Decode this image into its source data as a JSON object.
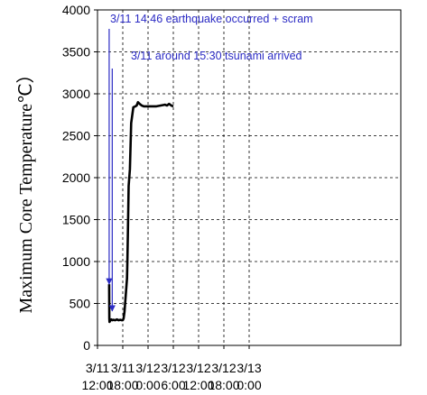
{
  "chart_data": {
    "type": "line",
    "title": "",
    "xlabel": "",
    "ylabel": "Maximum Core Temperature℃）",
    "xlim": [
      0,
      72
    ],
    "ylim": [
      0,
      4000
    ],
    "grid": true,
    "legend": "none",
    "y_ticks": [
      {
        "value": 0,
        "label": "0"
      },
      {
        "value": 500,
        "label": "500"
      },
      {
        "value": 1000,
        "label": "1000"
      },
      {
        "value": 1500,
        "label": "1500"
      },
      {
        "value": 2000,
        "label": "2000"
      },
      {
        "value": 2500,
        "label": "2500"
      },
      {
        "value": 3000,
        "label": "3000"
      },
      {
        "value": 3500,
        "label": "3500"
      },
      {
        "value": 4000,
        "label": "4000"
      }
    ],
    "x_ticks": [
      {
        "value": 0,
        "date": "3/11",
        "time": "12:00"
      },
      {
        "value": 6,
        "date": "3/11",
        "time": "18:00"
      },
      {
        "value": 12,
        "date": "3/12",
        "time": "0:00"
      },
      {
        "value": 18,
        "date": "3/12",
        "time": "6:00"
      },
      {
        "value": 24,
        "date": "3/12",
        "time": "12:00"
      },
      {
        "value": 30,
        "date": "3/12",
        "time": "18:00"
      },
      {
        "value": 36,
        "date": "3/13",
        "time": "0:00"
      }
    ],
    "series": [
      {
        "color": "#000000",
        "x": [
          2.77,
          2.8,
          2.85,
          2.95,
          3.1,
          3.3,
          3.5,
          3.8,
          4.2,
          4.6,
          5.0,
          5.4,
          5.8,
          6.0,
          6.2,
          6.4,
          6.7,
          7.0,
          7.1,
          7.2,
          7.4,
          7.7,
          8.0,
          8.5,
          9.0,
          9.3,
          9.6,
          10.0,
          10.5,
          11.0,
          12.0,
          13.0,
          14.0,
          15.0,
          16.0,
          16.5,
          17.0,
          17.5,
          18.0
        ],
        "y": [
          730,
          320,
          280,
          290,
          300,
          310,
          300,
          305,
          300,
          310,
          300,
          305,
          300,
          300,
          320,
          400,
          600,
          800,
          1000,
          1300,
          1900,
          2100,
          2650,
          2840,
          2850,
          2860,
          2900,
          2880,
          2860,
          2850,
          2850,
          2850,
          2850,
          2860,
          2870,
          2860,
          2880,
          2860,
          2850
        ]
      }
    ],
    "annotations": [
      {
        "text": "3/11 14:46 earthquake occurred + scram",
        "x": 2.77,
        "y_end": 730
      },
      {
        "text": "3/11 around 15:30 tsunami arrived",
        "x": 3.5,
        "y_end": 410
      }
    ],
    "colors": {
      "series": "#000000",
      "annotation": "#2b2bc4",
      "grid": "#000000"
    }
  }
}
